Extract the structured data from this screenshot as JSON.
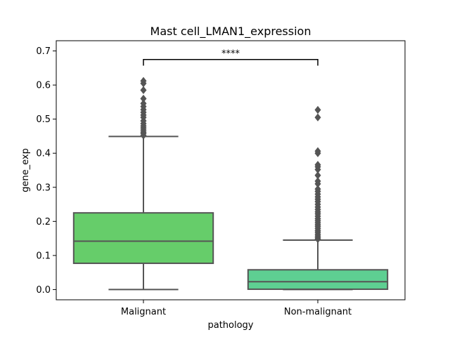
{
  "chart_data": {
    "type": "box",
    "title": "Mast cell_LMAN1_expression",
    "xlabel": "pathology",
    "ylabel": "gene_exp",
    "ylim": [
      -0.03,
      0.73
    ],
    "yticks": [
      0.0,
      0.1,
      0.2,
      0.3,
      0.4,
      0.5,
      0.6,
      0.7
    ],
    "ytick_labels": [
      "0.0",
      "0.1",
      "0.2",
      "0.3",
      "0.4",
      "0.5",
      "0.6",
      "0.7"
    ],
    "categories": [
      "Malignant",
      "Non-malignant"
    ],
    "boxes": [
      {
        "category": "Malignant",
        "color": "#66cd6a",
        "whisker_low": 0.0,
        "q1": 0.077,
        "median": 0.142,
        "q3": 0.225,
        "whisker_high": 0.449,
        "outliers": [
          0.452,
          0.458,
          0.462,
          0.468,
          0.474,
          0.48,
          0.487,
          0.495,
          0.505,
          0.512,
          0.52,
          0.528,
          0.537,
          0.546,
          0.56,
          0.585,
          0.605,
          0.612
        ]
      },
      {
        "category": "Non-malignant",
        "color": "#5ecf92",
        "whisker_low": 0.0,
        "q1": 0.001,
        "median": 0.023,
        "q3": 0.058,
        "whisker_high": 0.145,
        "outliers": [
          0.148,
          0.152,
          0.157,
          0.162,
          0.168,
          0.173,
          0.179,
          0.185,
          0.19,
          0.196,
          0.202,
          0.208,
          0.215,
          0.222,
          0.228,
          0.235,
          0.242,
          0.25,
          0.258,
          0.265,
          0.272,
          0.28,
          0.288,
          0.295,
          0.31,
          0.318,
          0.335,
          0.352,
          0.36,
          0.366,
          0.4,
          0.406,
          0.505,
          0.527
        ]
      }
    ],
    "annotation": {
      "text": "****",
      "between": [
        "Malignant",
        "Non-malignant"
      ],
      "y": 0.675,
      "tick_drop": 0.018
    }
  }
}
